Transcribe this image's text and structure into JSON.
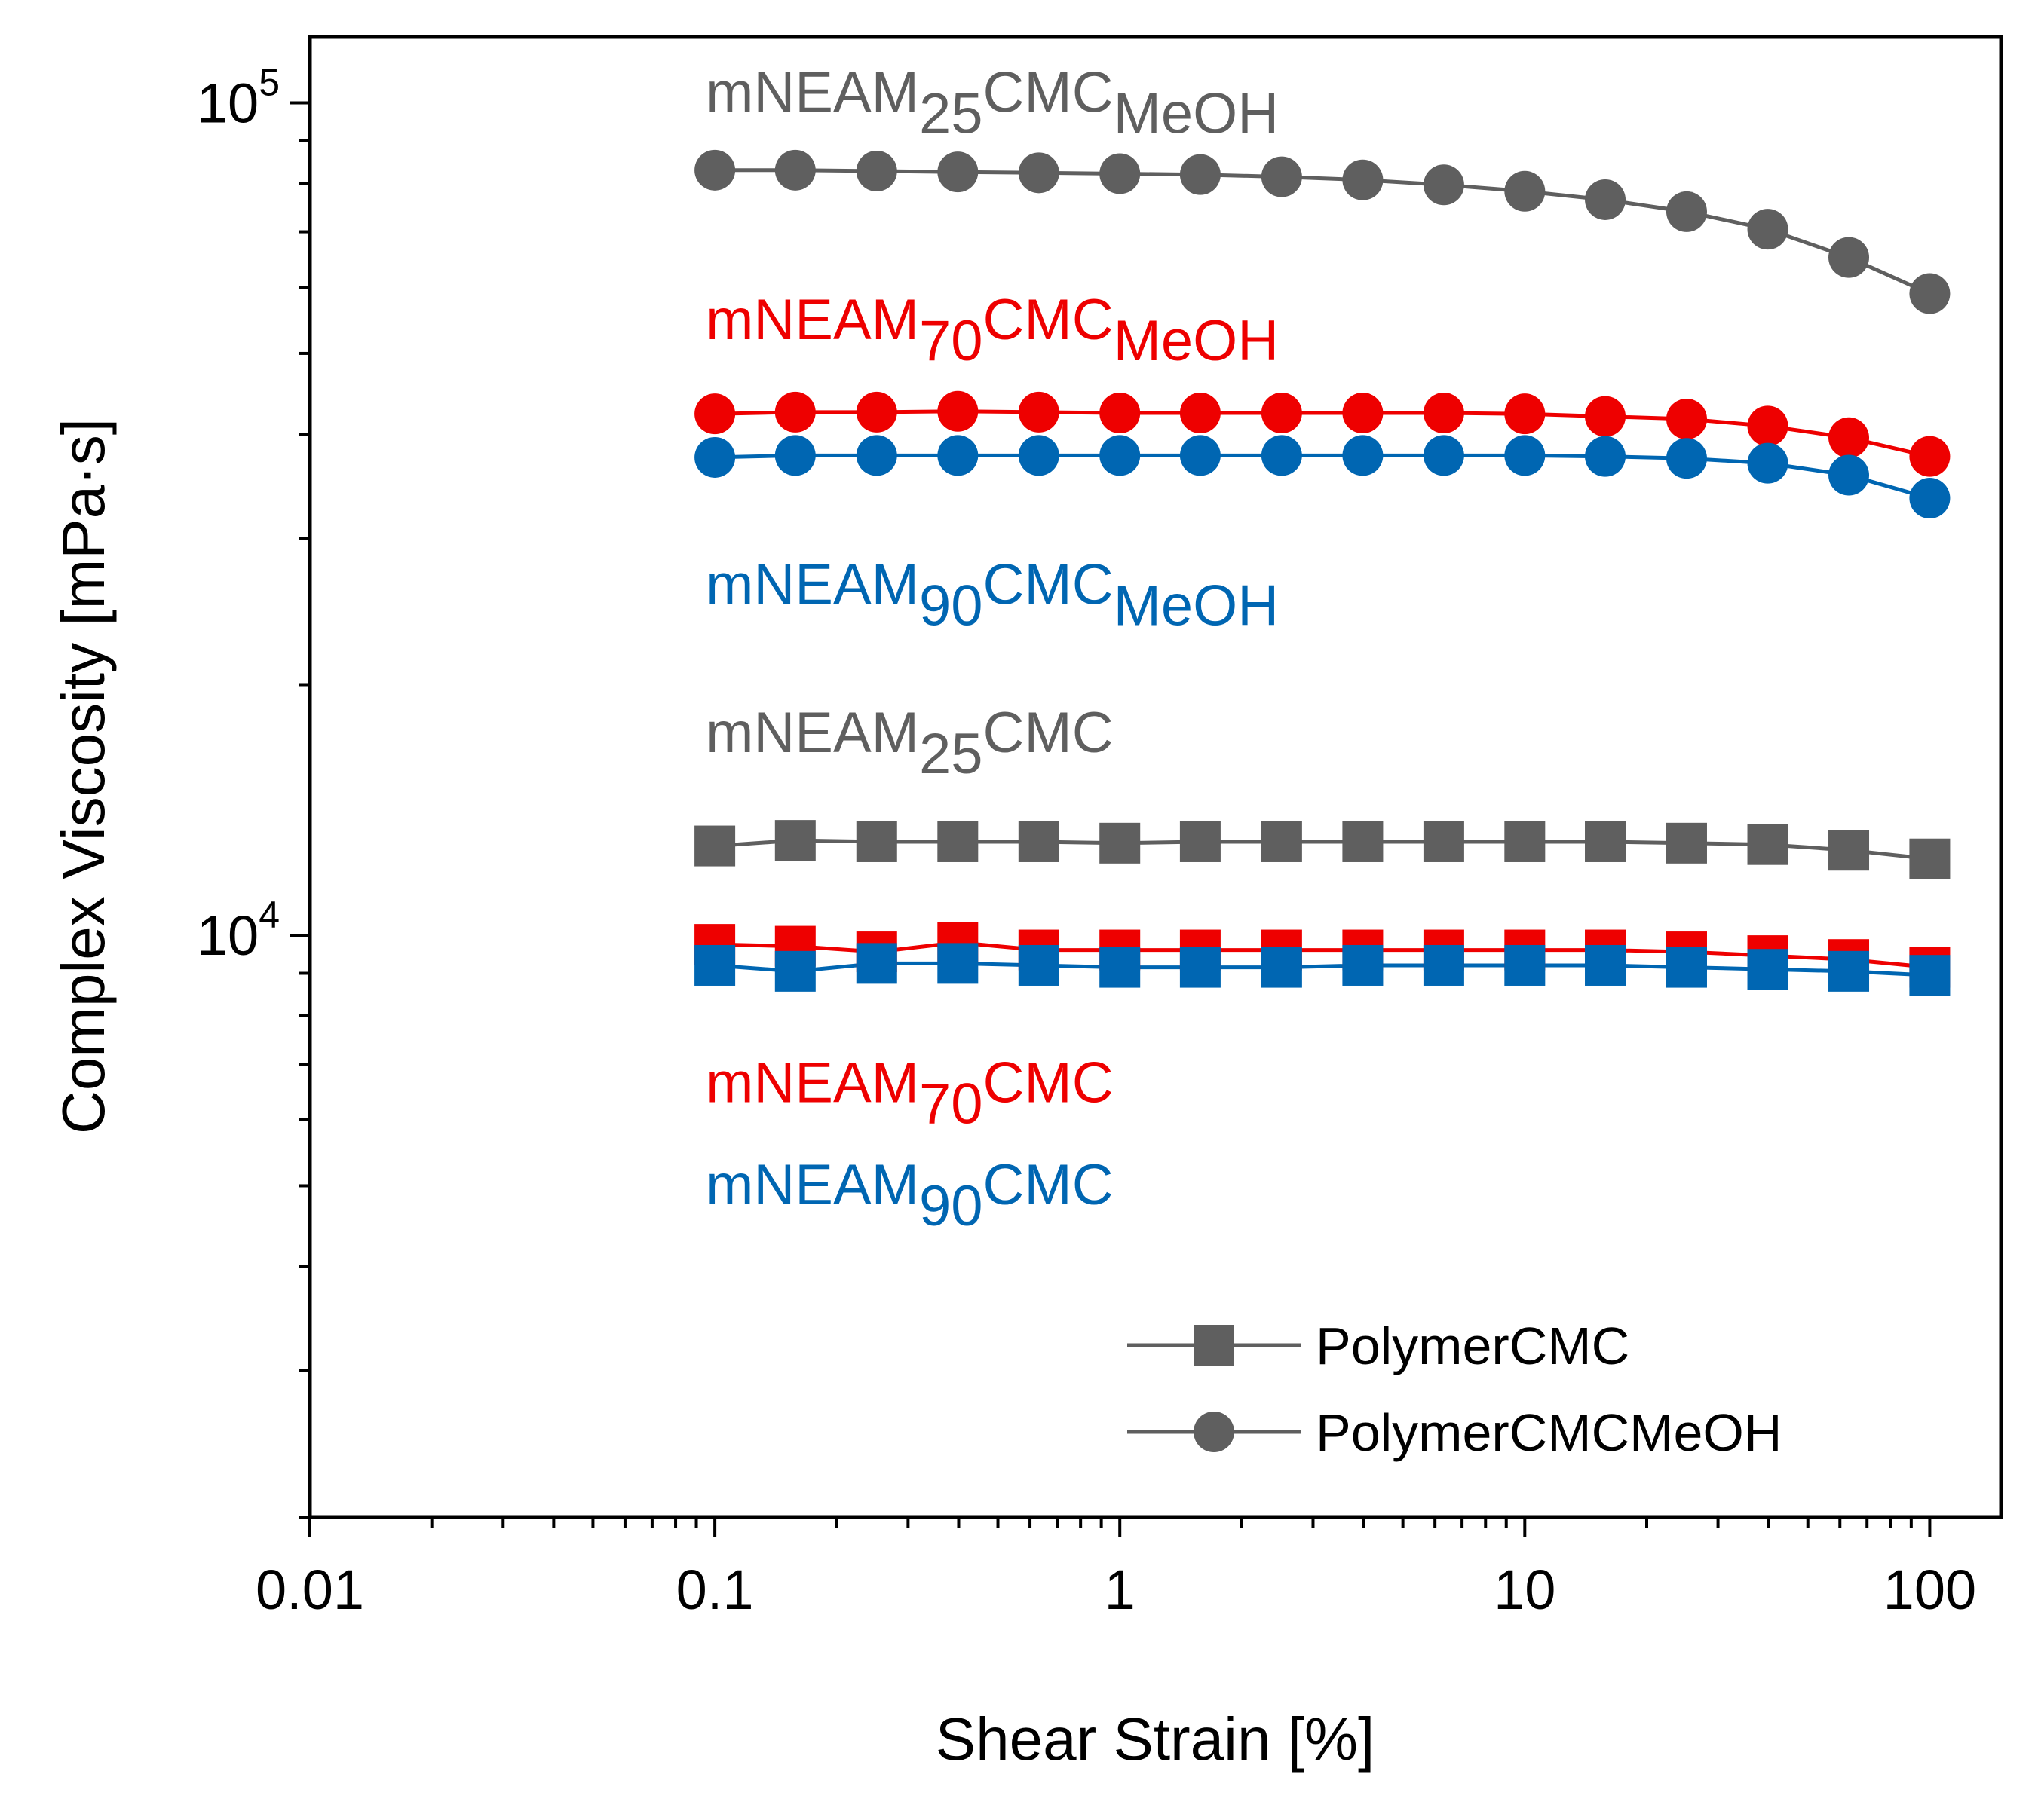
{
  "chart_data": {
    "type": "line",
    "x_scale": "log",
    "y_scale": "log",
    "xlabel": "Shear Strain [%]",
    "ylabel": "Complex Viscosity [mPa·s]",
    "xlim": [
      0.01,
      150
    ],
    "ylim": [
      2000,
      120000
    ],
    "x_ticks": [
      {
        "value": 0.01,
        "label": "0.01"
      },
      {
        "value": 0.1,
        "label": "0.1"
      },
      {
        "value": 1,
        "label": "1"
      },
      {
        "value": 10,
        "label": "10"
      },
      {
        "value": 100,
        "label": "100"
      }
    ],
    "y_ticks": [
      {
        "value": 10000,
        "base": "10",
        "exp": "4"
      },
      {
        "value": 100000,
        "base": "10",
        "exp": "5"
      }
    ],
    "colors": {
      "gray": "#5f5f5f",
      "red": "#ee0000",
      "blue": "#0066b2"
    },
    "x": [
      0.1,
      0.158,
      0.251,
      0.398,
      0.631,
      1,
      1.58,
      2.51,
      3.98,
      6.31,
      10,
      15.8,
      25.1,
      39.8,
      63.1,
      100
    ],
    "series": [
      {
        "key": "m25_meoh",
        "color": "gray",
        "marker": "circle",
        "values": [
          83000,
          83000,
          82800,
          82600,
          82400,
          82200,
          82000,
          81500,
          80800,
          79700,
          78300,
          76500,
          74000,
          70500,
          65200,
          59000
        ]
      },
      {
        "key": "m70_meoh",
        "color": "red",
        "marker": "circle",
        "values": [
          42300,
          42500,
          42500,
          42600,
          42500,
          42400,
          42400,
          42400,
          42400,
          42400,
          42300,
          42000,
          41700,
          40900,
          39600,
          37600
        ]
      },
      {
        "key": "m90_meoh",
        "color": "blue",
        "marker": "circle",
        "values": [
          37500,
          37700,
          37700,
          37700,
          37700,
          37700,
          37700,
          37700,
          37700,
          37700,
          37700,
          37600,
          37400,
          36900,
          35700,
          33500
        ]
      },
      {
        "key": "m25",
        "color": "gray",
        "marker": "square",
        "values": [
          12800,
          13000,
          12950,
          12950,
          12950,
          12900,
          12950,
          12950,
          12950,
          12950,
          12950,
          12950,
          12900,
          12850,
          12650,
          12350
        ]
      },
      {
        "key": "m70",
        "color": "red",
        "marker": "square",
        "values": [
          9750,
          9700,
          9550,
          9800,
          9600,
          9600,
          9600,
          9600,
          9600,
          9600,
          9600,
          9600,
          9550,
          9450,
          9350,
          9150
        ]
      },
      {
        "key": "m90",
        "color": "blue",
        "marker": "square",
        "values": [
          9200,
          9050,
          9250,
          9250,
          9200,
          9150,
          9150,
          9150,
          9200,
          9200,
          9200,
          9200,
          9150,
          9100,
          9050,
          8950
        ]
      }
    ],
    "annotations": [
      {
        "key": "a1",
        "color": "gray",
        "main": "mNEAM",
        "sub1": "25",
        "mid": "CMC",
        "sub2": "MeOH",
        "x": 0.1,
        "y": 97500
      },
      {
        "key": "a2",
        "color": "red",
        "main": "mNEAM",
        "sub1": "70",
        "mid": "CMC",
        "sub2": "MeOH",
        "x": 0.1,
        "y": 52000
      },
      {
        "key": "a3",
        "color": "blue",
        "main": "mNEAM",
        "sub1": "90",
        "mid": "CMC",
        "sub2": "MeOH",
        "x": 0.1,
        "y": 25000
      },
      {
        "key": "a4",
        "color": "gray",
        "main": "mNEAM",
        "sub1": "25",
        "mid": "CMC",
        "sub2": "",
        "x": 0.1,
        "y": 16600
      },
      {
        "key": "a5",
        "color": "red",
        "main": "mNEAM",
        "sub1": "70",
        "mid": "CMC",
        "sub2": "",
        "x": 0.1,
        "y": 6300
      },
      {
        "key": "a6",
        "color": "blue",
        "main": "mNEAM",
        "sub1": "90",
        "mid": "CMC",
        "sub2": "",
        "x": 0.1,
        "y": 4750
      }
    ],
    "legend": {
      "placement": "bottom-right",
      "entries": [
        {
          "label": "PolymerCMC",
          "marker": "square",
          "color": "gray"
        },
        {
          "label": "PolymerCMCMeOH",
          "marker": "circle",
          "color": "gray"
        }
      ]
    },
    "grid": false
  }
}
